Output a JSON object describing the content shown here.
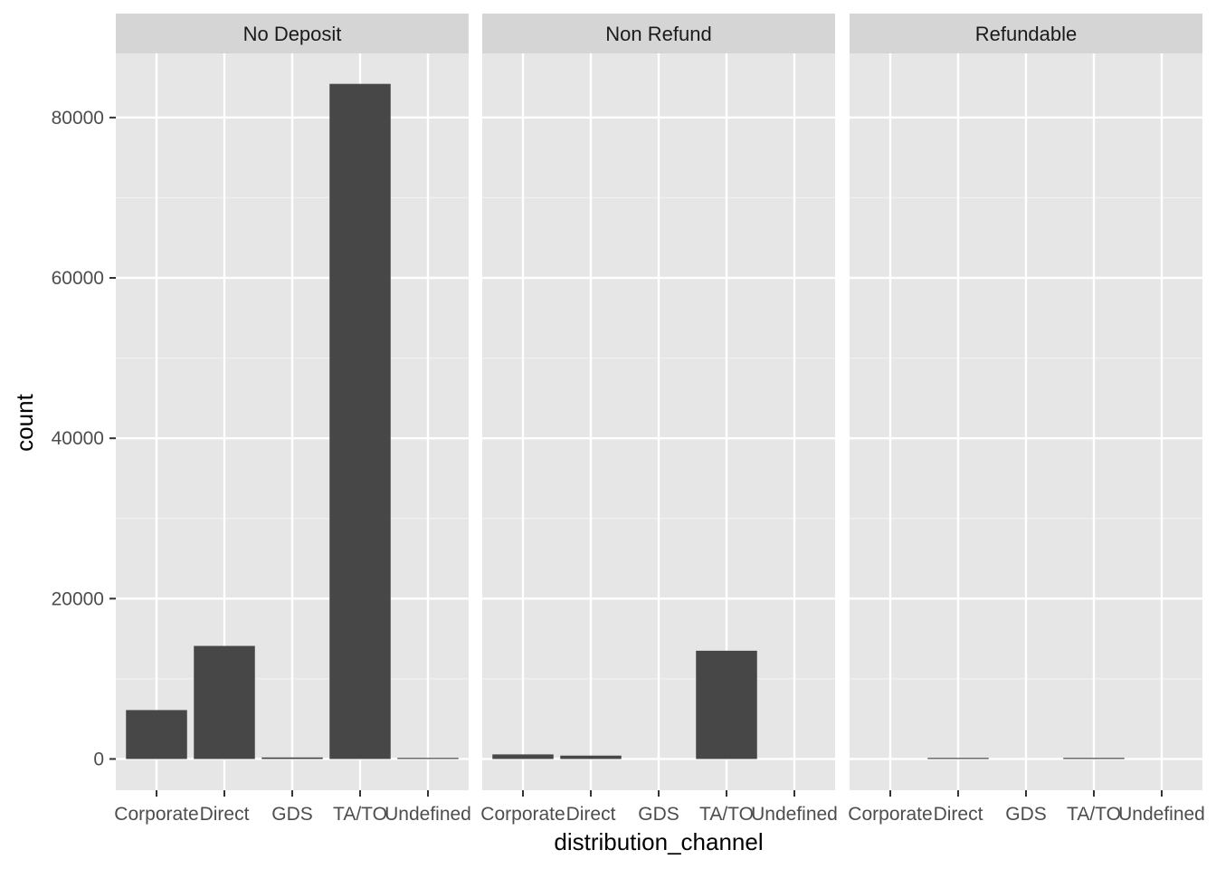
{
  "chart_data": {
    "type": "bar",
    "xlabel": "distribution_channel",
    "ylabel": "count",
    "ylim": [
      -3900,
      88000
    ],
    "y_ticks": [
      0,
      20000,
      40000,
      60000,
      80000
    ],
    "y_tick_labels": [
      "0",
      "20000",
      "40000",
      "60000",
      "80000"
    ],
    "categories": [
      "Corporate",
      "Direct",
      "GDS",
      "TA/TO",
      "Undefined"
    ],
    "facets": [
      {
        "name": "No Deposit",
        "values": [
          6100,
          14100,
          190,
          84200,
          1
        ]
      },
      {
        "name": "Non Refund",
        "values": [
          570,
          420,
          0,
          13500,
          0
        ]
      },
      {
        "name": "Refundable",
        "values": [
          0,
          120,
          0,
          60,
          0
        ]
      }
    ],
    "grid": true,
    "colors": {
      "bar": "#474747",
      "panel_bg": "#e6e6e6",
      "strip_bg": "#d5d5d5",
      "grid_major": "#ffffff",
      "grid_minor": "#f1f1f1"
    }
  }
}
